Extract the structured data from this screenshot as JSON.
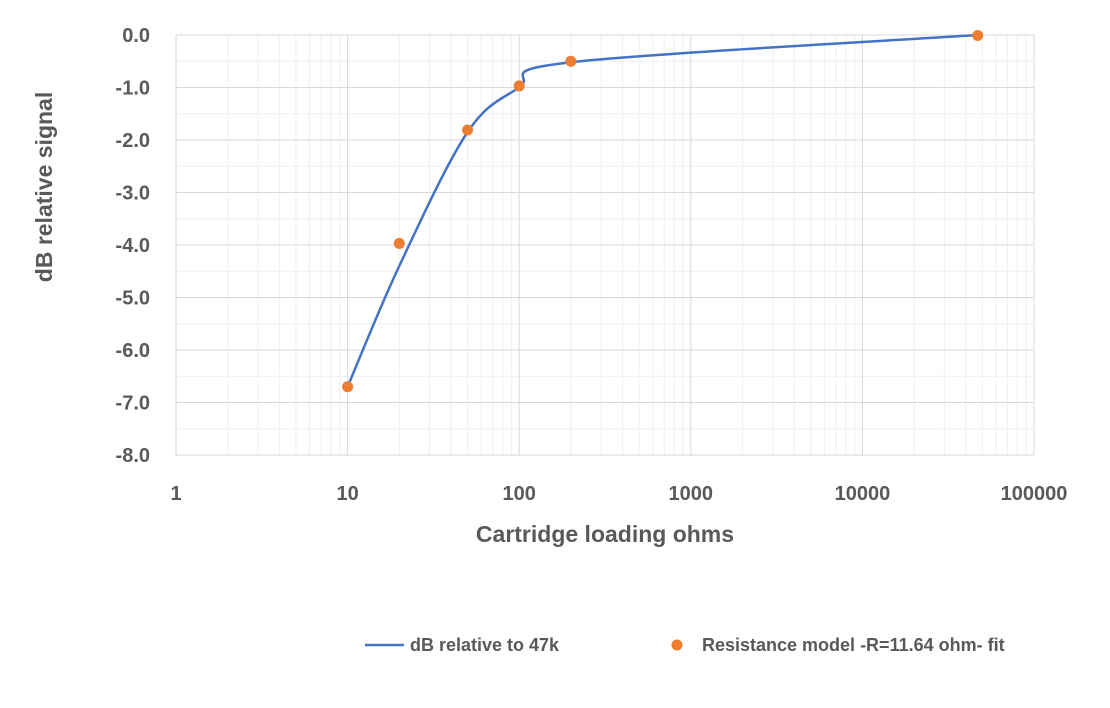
{
  "chart_data": {
    "type": "line",
    "xscale": "log",
    "xlim": [
      1,
      100000
    ],
    "ylim": [
      -8,
      0
    ],
    "grid": true,
    "legend_position": "bottom",
    "xlabel": "Cartridge loading ohms",
    "ylabel": "dB relative signal",
    "x_ticks": [
      "1",
      "10",
      "100",
      "1000",
      "10000",
      "100000"
    ],
    "y_ticks": [
      "0.0",
      "-1.0",
      "-2.0",
      "-3.0",
      "-4.0",
      "-5.0",
      "-6.0",
      "-7.0",
      "-8.0"
    ],
    "series": [
      {
        "name": "dB relative to 47k",
        "kind": "line",
        "color": "#4472C4",
        "x": [
          10,
          20,
          50,
          100,
          200,
          47000
        ],
        "y": [
          -6.7,
          -4.4,
          -1.85,
          -1.0,
          -0.52,
          0.0
        ]
      },
      {
        "name": "Resistance model -R=11.64 ohm- fit",
        "kind": "scatter",
        "color": "#ED7D31",
        "x": [
          10,
          20,
          50,
          100,
          200,
          47000
        ],
        "y": [
          -6.7,
          -3.97,
          -1.81,
          -0.97,
          -0.5,
          -0.01
        ]
      }
    ]
  }
}
